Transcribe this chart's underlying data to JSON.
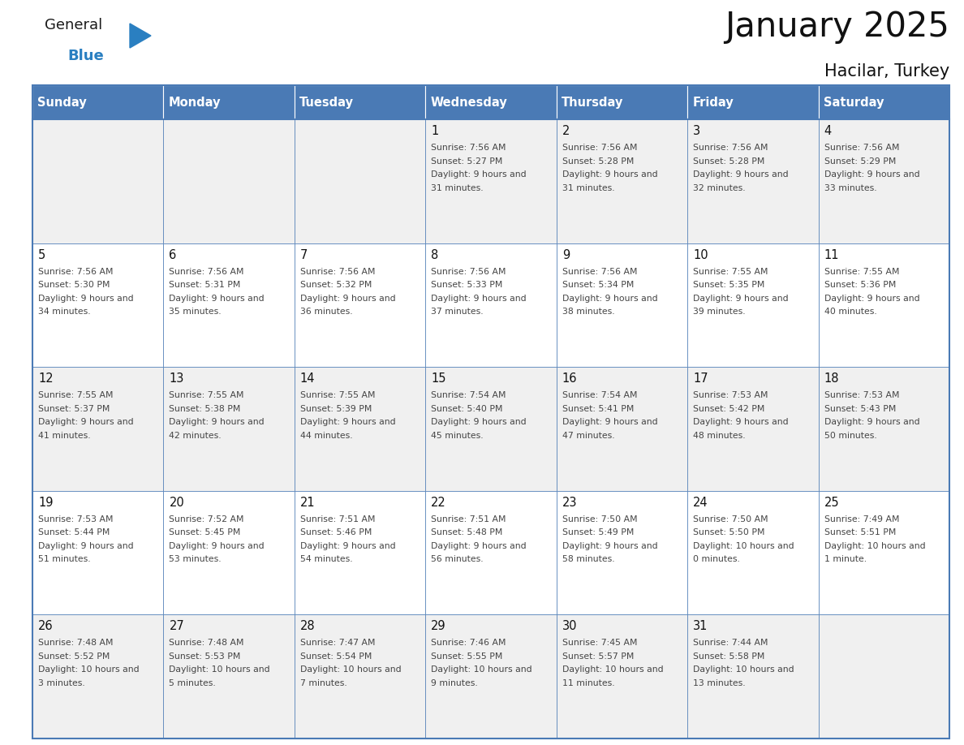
{
  "title": "January 2025",
  "subtitle": "Hacilar, Turkey",
  "days_of_week": [
    "Sunday",
    "Monday",
    "Tuesday",
    "Wednesday",
    "Thursday",
    "Friday",
    "Saturday"
  ],
  "header_bg": "#4a7ab5",
  "header_text": "#ffffff",
  "row_bg_even": "#f0f0f0",
  "row_bg_odd": "#ffffff",
  "text_color": "#444444",
  "day_num_color": "#111111",
  "border_color": "#4a7ab5",
  "line_color": "#4a7ab5",
  "calendar_data": [
    [
      {
        "day": "",
        "sunrise": "",
        "sunset": "",
        "daylight": ""
      },
      {
        "day": "",
        "sunrise": "",
        "sunset": "",
        "daylight": ""
      },
      {
        "day": "",
        "sunrise": "",
        "sunset": "",
        "daylight": ""
      },
      {
        "day": "1",
        "sunrise": "7:56 AM",
        "sunset": "5:27 PM",
        "daylight": "9 hours and 31 minutes."
      },
      {
        "day": "2",
        "sunrise": "7:56 AM",
        "sunset": "5:28 PM",
        "daylight": "9 hours and 31 minutes."
      },
      {
        "day": "3",
        "sunrise": "7:56 AM",
        "sunset": "5:28 PM",
        "daylight": "9 hours and 32 minutes."
      },
      {
        "day": "4",
        "sunrise": "7:56 AM",
        "sunset": "5:29 PM",
        "daylight": "9 hours and 33 minutes."
      }
    ],
    [
      {
        "day": "5",
        "sunrise": "7:56 AM",
        "sunset": "5:30 PM",
        "daylight": "9 hours and 34 minutes."
      },
      {
        "day": "6",
        "sunrise": "7:56 AM",
        "sunset": "5:31 PM",
        "daylight": "9 hours and 35 minutes."
      },
      {
        "day": "7",
        "sunrise": "7:56 AM",
        "sunset": "5:32 PM",
        "daylight": "9 hours and 36 minutes."
      },
      {
        "day": "8",
        "sunrise": "7:56 AM",
        "sunset": "5:33 PM",
        "daylight": "9 hours and 37 minutes."
      },
      {
        "day": "9",
        "sunrise": "7:56 AM",
        "sunset": "5:34 PM",
        "daylight": "9 hours and 38 minutes."
      },
      {
        "day": "10",
        "sunrise": "7:55 AM",
        "sunset": "5:35 PM",
        "daylight": "9 hours and 39 minutes."
      },
      {
        "day": "11",
        "sunrise": "7:55 AM",
        "sunset": "5:36 PM",
        "daylight": "9 hours and 40 minutes."
      }
    ],
    [
      {
        "day": "12",
        "sunrise": "7:55 AM",
        "sunset": "5:37 PM",
        "daylight": "9 hours and 41 minutes."
      },
      {
        "day": "13",
        "sunrise": "7:55 AM",
        "sunset": "5:38 PM",
        "daylight": "9 hours and 42 minutes."
      },
      {
        "day": "14",
        "sunrise": "7:55 AM",
        "sunset": "5:39 PM",
        "daylight": "9 hours and 44 minutes."
      },
      {
        "day": "15",
        "sunrise": "7:54 AM",
        "sunset": "5:40 PM",
        "daylight": "9 hours and 45 minutes."
      },
      {
        "day": "16",
        "sunrise": "7:54 AM",
        "sunset": "5:41 PM",
        "daylight": "9 hours and 47 minutes."
      },
      {
        "day": "17",
        "sunrise": "7:53 AM",
        "sunset": "5:42 PM",
        "daylight": "9 hours and 48 minutes."
      },
      {
        "day": "18",
        "sunrise": "7:53 AM",
        "sunset": "5:43 PM",
        "daylight": "9 hours and 50 minutes."
      }
    ],
    [
      {
        "day": "19",
        "sunrise": "7:53 AM",
        "sunset": "5:44 PM",
        "daylight": "9 hours and 51 minutes."
      },
      {
        "day": "20",
        "sunrise": "7:52 AM",
        "sunset": "5:45 PM",
        "daylight": "9 hours and 53 minutes."
      },
      {
        "day": "21",
        "sunrise": "7:51 AM",
        "sunset": "5:46 PM",
        "daylight": "9 hours and 54 minutes."
      },
      {
        "day": "22",
        "sunrise": "7:51 AM",
        "sunset": "5:48 PM",
        "daylight": "9 hours and 56 minutes."
      },
      {
        "day": "23",
        "sunrise": "7:50 AM",
        "sunset": "5:49 PM",
        "daylight": "9 hours and 58 minutes."
      },
      {
        "day": "24",
        "sunrise": "7:50 AM",
        "sunset": "5:50 PM",
        "daylight": "10 hours and 0 minutes."
      },
      {
        "day": "25",
        "sunrise": "7:49 AM",
        "sunset": "5:51 PM",
        "daylight": "10 hours and 1 minute."
      }
    ],
    [
      {
        "day": "26",
        "sunrise": "7:48 AM",
        "sunset": "5:52 PM",
        "daylight": "10 hours and 3 minutes."
      },
      {
        "day": "27",
        "sunrise": "7:48 AM",
        "sunset": "5:53 PM",
        "daylight": "10 hours and 5 minutes."
      },
      {
        "day": "28",
        "sunrise": "7:47 AM",
        "sunset": "5:54 PM",
        "daylight": "10 hours and 7 minutes."
      },
      {
        "day": "29",
        "sunrise": "7:46 AM",
        "sunset": "5:55 PM",
        "daylight": "10 hours and 9 minutes."
      },
      {
        "day": "30",
        "sunrise": "7:45 AM",
        "sunset": "5:57 PM",
        "daylight": "10 hours and 11 minutes."
      },
      {
        "day": "31",
        "sunrise": "7:44 AM",
        "sunset": "5:58 PM",
        "daylight": "10 hours and 13 minutes."
      },
      {
        "day": "",
        "sunrise": "",
        "sunset": "",
        "daylight": ""
      }
    ]
  ],
  "logo_color_general": "#1a1a1a",
  "logo_color_blue": "#2a7fc1",
  "logo_triangle_color": "#2a7fc1",
  "fig_width": 11.88,
  "fig_height": 9.18,
  "dpi": 100
}
